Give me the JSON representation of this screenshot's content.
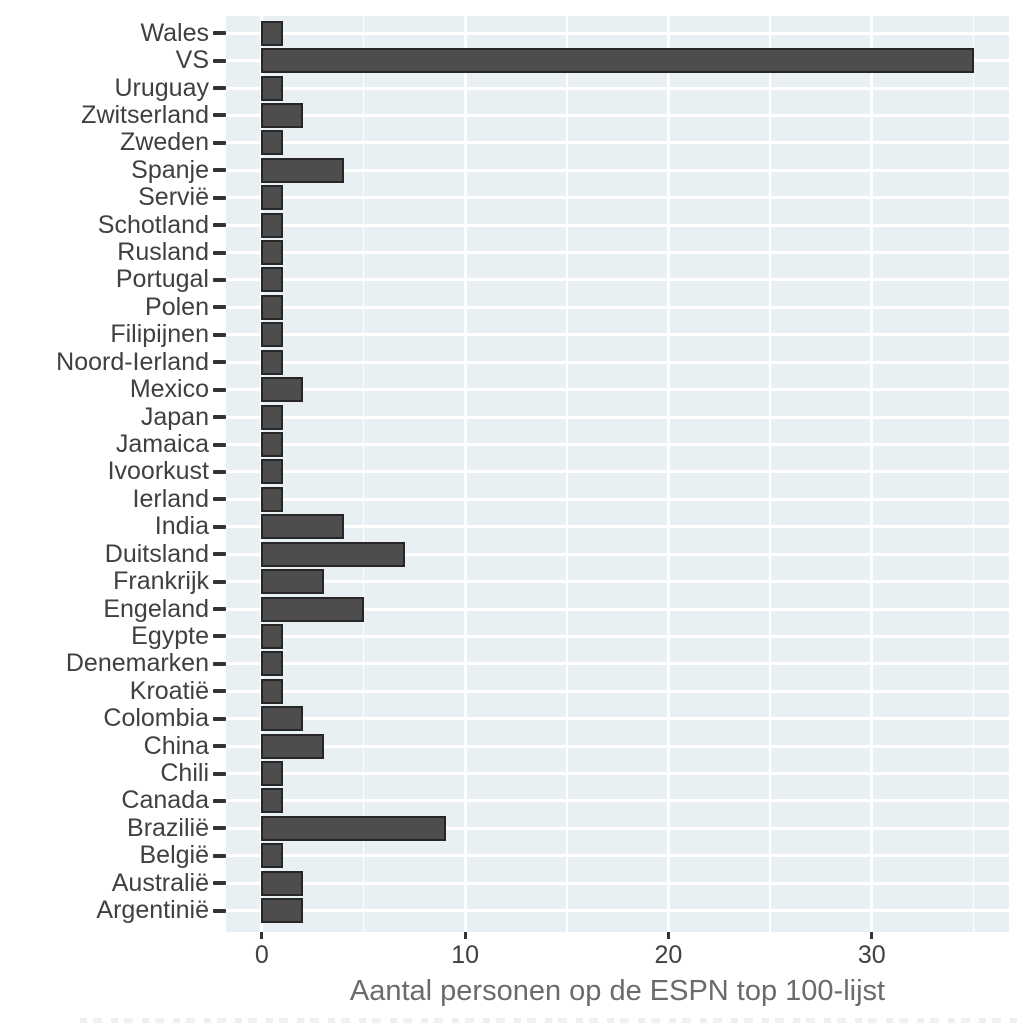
{
  "chart_data": {
    "type": "bar",
    "orientation": "horizontal",
    "title": "",
    "xlabel": "Aantal personen op de ESPN top 100-lijst",
    "ylabel": "",
    "category_order": "top-to-bottom as displayed",
    "categories": [
      "Wales",
      "VS",
      "Uruguay",
      "Zwitserland",
      "Zweden",
      "Spanje",
      "Servië",
      "Schotland",
      "Rusland",
      "Portugal",
      "Polen",
      "Filipijnen",
      "Noord-Ierland",
      "Mexico",
      "Japan",
      "Jamaica",
      "Ivoorkust",
      "Ierland",
      "India",
      "Duitsland",
      "Frankrijk",
      "Engeland",
      "Egypte",
      "Denemarken",
      "Kroatië",
      "Colombia",
      "China",
      "Chili",
      "Canada",
      "Brazilië",
      "België",
      "Australië",
      "Argentinië"
    ],
    "values": [
      1,
      35,
      1,
      2,
      1,
      4,
      1,
      1,
      1,
      1,
      1,
      1,
      1,
      2,
      1,
      1,
      1,
      1,
      4,
      7,
      3,
      5,
      1,
      1,
      1,
      2,
      3,
      1,
      1,
      9,
      1,
      2,
      2
    ],
    "values_total": 100,
    "xlim": [
      -1.76,
      36.75
    ],
    "x_major_ticks": [
      0,
      10,
      20,
      30
    ],
    "x_minor_gridlines": [
      5,
      15,
      25,
      35
    ],
    "grid": "white major + minor vertical lines, white major horizontal line per category, on light panel",
    "legend": "none",
    "style": {
      "panel_background": "#E9F0F4",
      "gridline_color": "#FFFFFF",
      "bar_fill": "#4D4D4D",
      "bar_stroke": "#262626",
      "axis_text_color": "#404040",
      "axis_title_color": "#6B6B6B",
      "tick_mark_color": "#333333"
    }
  }
}
